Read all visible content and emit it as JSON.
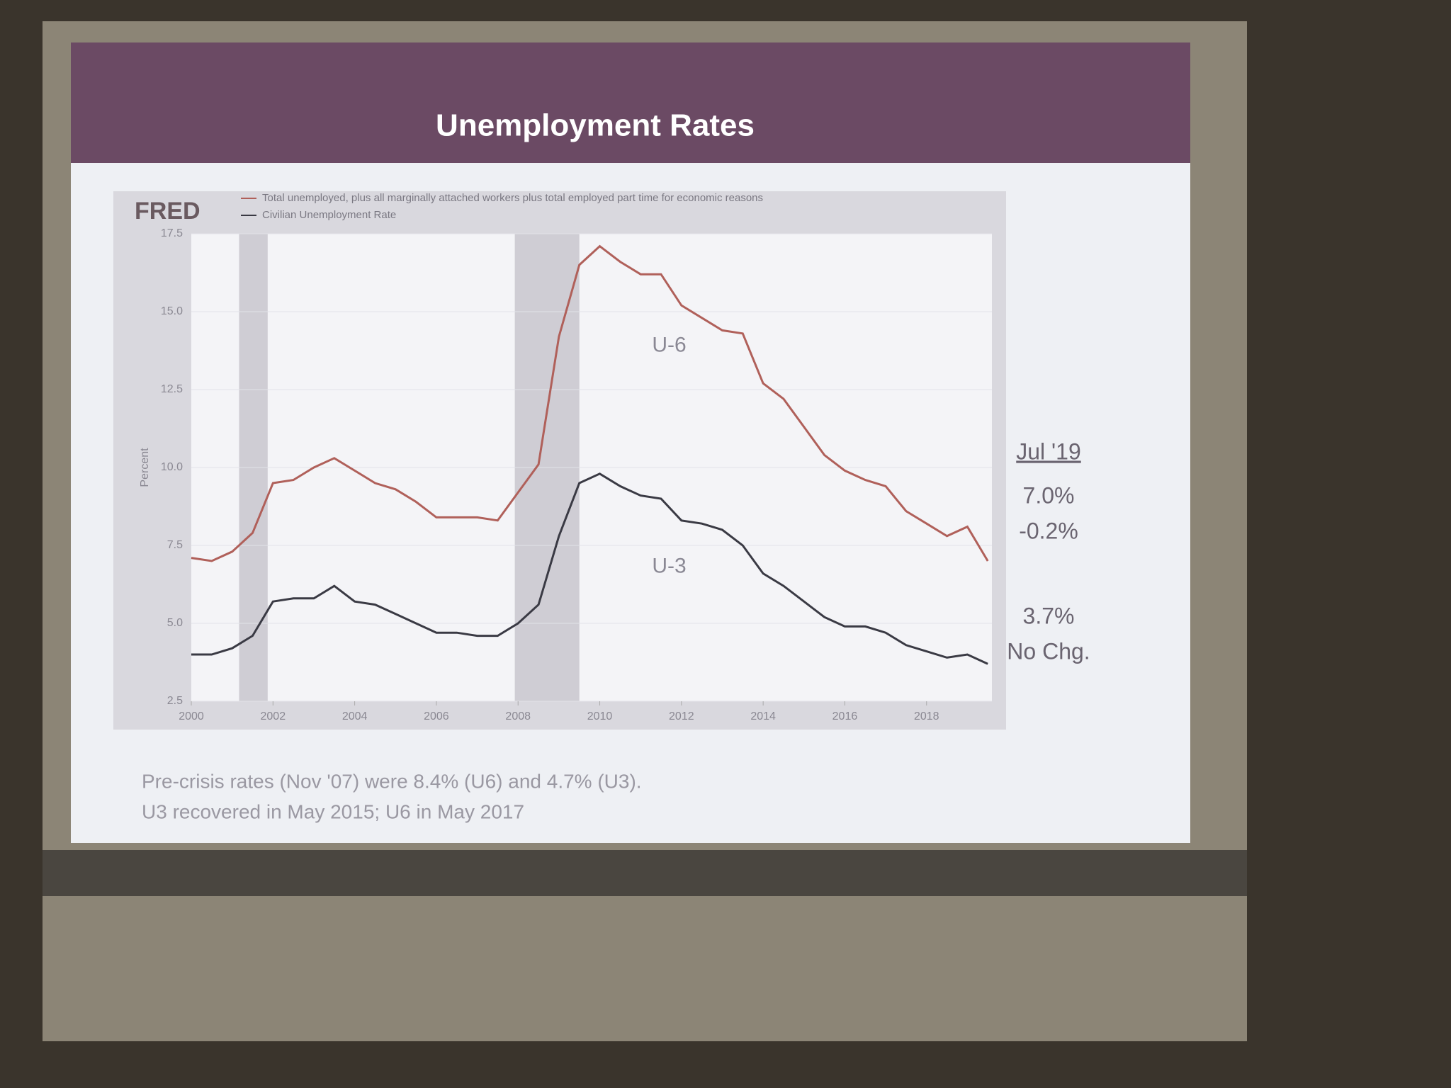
{
  "slide": {
    "title": "Unemployment Rates",
    "notes": [
      "Pre-crisis rates (Nov '07) were 8.4% (U6) and 4.7% (U3).",
      "U3 recovered in May 2015; U6 in May 2017"
    ],
    "latest": {
      "heading": "Jul '19",
      "u6_level": "7.0%",
      "u6_change": "-0.2%",
      "u3_level": "3.7%",
      "u3_change": "No Chg."
    }
  },
  "chart_data": {
    "type": "line",
    "logo": "FRED",
    "y_label": "Percent",
    "x": [
      2000,
      2000.5,
      2001,
      2001.5,
      2002,
      2002.5,
      2003,
      2003.5,
      2004,
      2004.5,
      2005,
      2005.5,
      2006,
      2006.5,
      2007,
      2007.5,
      2008,
      2008.5,
      2009,
      2009.5,
      2010,
      2010.5,
      2011,
      2011.5,
      2012,
      2012.5,
      2013,
      2013.5,
      2014,
      2014.5,
      2015,
      2015.5,
      2016,
      2016.5,
      2017,
      2017.5,
      2018,
      2018.5,
      2019,
      2019.5
    ],
    "series": [
      {
        "name": "Total unemployed, plus all marginally attached workers plus total employed part time for economic reasons",
        "label": "U-6",
        "color": "#b0605a",
        "values": [
          7.1,
          7.0,
          7.3,
          7.9,
          9.5,
          9.6,
          10.0,
          10.3,
          9.9,
          9.5,
          9.3,
          8.9,
          8.4,
          8.4,
          8.4,
          8.3,
          9.2,
          10.1,
          14.2,
          16.5,
          17.1,
          16.6,
          16.2,
          16.2,
          15.2,
          14.8,
          14.4,
          14.3,
          12.7,
          12.2,
          11.3,
          10.4,
          9.9,
          9.6,
          9.4,
          8.6,
          8.2,
          7.8,
          8.1,
          7.0
        ]
      },
      {
        "name": "Civilian Unemployment Rate",
        "label": "U-3",
        "color": "#3a3a44",
        "values": [
          4.0,
          4.0,
          4.2,
          4.6,
          5.7,
          5.8,
          5.8,
          6.2,
          5.7,
          5.6,
          5.3,
          5.0,
          4.7,
          4.7,
          4.6,
          4.6,
          5.0,
          5.6,
          7.8,
          9.5,
          9.8,
          9.4,
          9.1,
          9.0,
          8.3,
          8.2,
          8.0,
          7.5,
          6.6,
          6.2,
          5.7,
          5.2,
          4.9,
          4.9,
          4.7,
          4.3,
          4.1,
          3.9,
          4.0,
          3.7
        ]
      }
    ],
    "recessions": [
      [
        2001.17,
        2001.87
      ],
      [
        2007.92,
        2009.5
      ]
    ],
    "xlim": [
      2000,
      2019.6
    ],
    "xticks": [
      2000,
      2002,
      2004,
      2006,
      2008,
      2010,
      2012,
      2014,
      2016,
      2018
    ],
    "ylim": [
      2.5,
      17.5
    ],
    "yticks": [
      2.5,
      {
        "value": 5,
        "label": "5.0"
      },
      7.5,
      {
        "value": 10,
        "label": "10.0"
      },
      12.5,
      {
        "value": 15,
        "label": "15.0"
      },
      17.5
    ],
    "grid": true
  }
}
